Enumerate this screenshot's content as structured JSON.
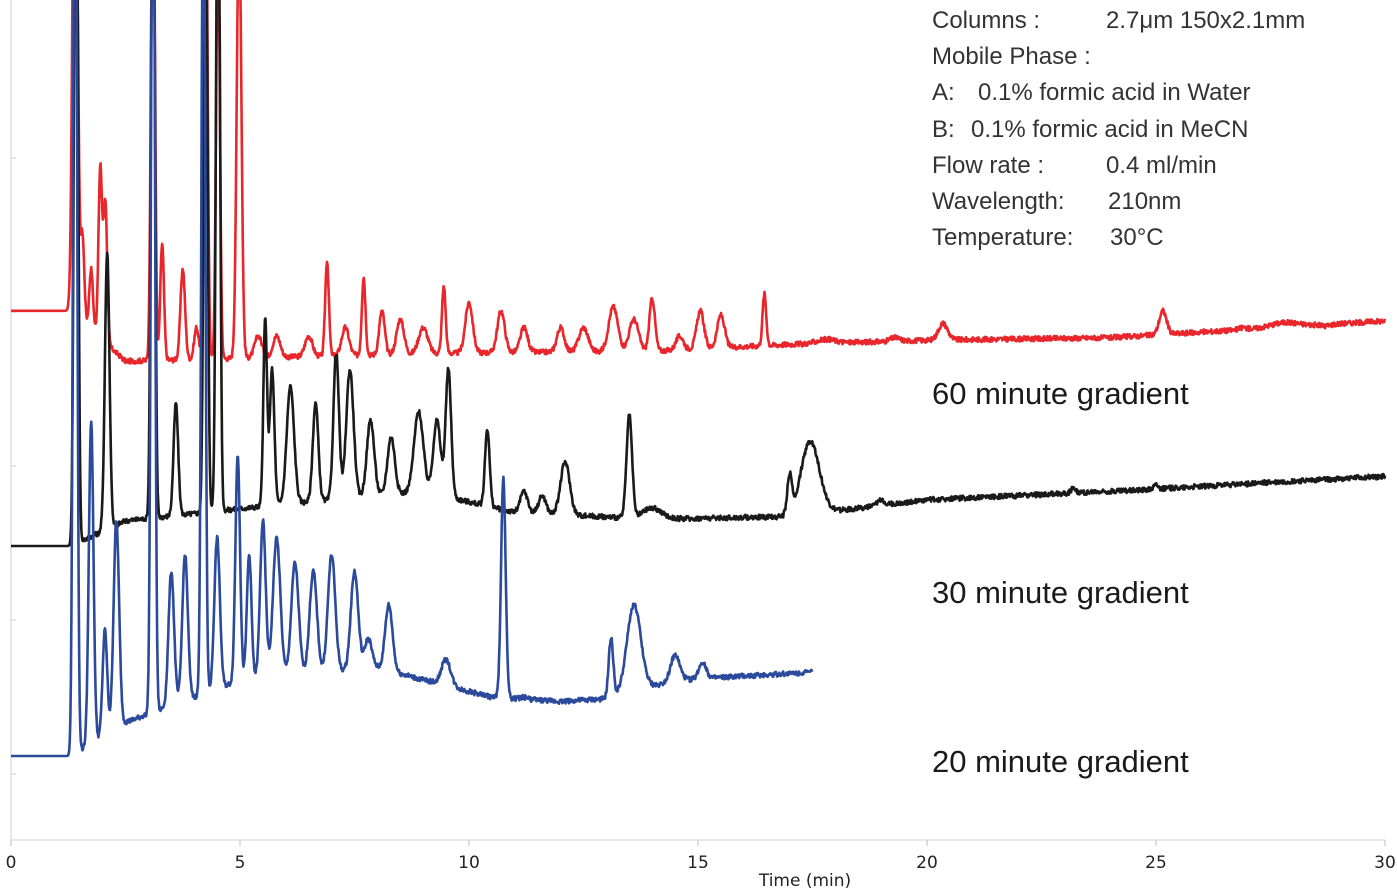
{
  "chart_data": {
    "type": "line",
    "title": "",
    "xlabel": "Time (min)",
    "ylabel": "",
    "xlim": [
      0,
      30
    ],
    "ylim": [
      0,
      100
    ],
    "x_ticks": [
      "0",
      "5",
      "10",
      "15",
      "20",
      "25",
      "30"
    ],
    "grid": false,
    "conditions": [
      {
        "label": "Columns :",
        "value": "2.7μm 150x2.1mm"
      },
      {
        "label": "Mobile Phase :",
        "value": ""
      },
      {
        "label": "A:",
        "value": "0.1% formic acid in Water"
      },
      {
        "label": "B:",
        "value": "0.1% formic acid in MeCN"
      },
      {
        "label": "Flow rate :",
        "value": "0.4 ml/min"
      },
      {
        "label": "Wavelength:",
        "value": "210nm"
      },
      {
        "label": "Temperature:",
        "value": "30°C"
      }
    ],
    "series": [
      {
        "name": "60 minute gradient",
        "color": "#e8262b",
        "baseline": [
          [
            0,
            63
          ],
          [
            1.3,
            63
          ],
          [
            2.5,
            57
          ],
          [
            6,
            57.5
          ],
          [
            10,
            58
          ],
          [
            14,
            58.2
          ],
          [
            17,
            59
          ],
          [
            20,
            59.5
          ],
          [
            24,
            59.8
          ],
          [
            30,
            61.8
          ]
        ],
        "peaks": [
          [
            1.4,
            140,
            0.05
          ],
          [
            1.56,
            72,
            0.04
          ],
          [
            1.75,
            68,
            0.04
          ],
          [
            1.95,
            80,
            0.04
          ],
          [
            2.06,
            76,
            0.04
          ],
          [
            3.1,
            125,
            0.04
          ],
          [
            3.3,
            71,
            0.04
          ],
          [
            3.75,
            68,
            0.05
          ],
          [
            4.05,
            61,
            0.05
          ],
          [
            4.25,
            120,
            0.04
          ],
          [
            4.52,
            108,
            0.04
          ],
          [
            4.98,
            110,
            0.05
          ],
          [
            5.4,
            60,
            0.08
          ],
          [
            5.8,
            60,
            0.08
          ],
          [
            6.5,
            60,
            0.08
          ],
          [
            6.9,
            69,
            0.04
          ],
          [
            7.3,
            61,
            0.08
          ],
          [
            7.7,
            67,
            0.04
          ],
          [
            8.1,
            63,
            0.06
          ],
          [
            8.5,
            62,
            0.08
          ],
          [
            9.0,
            61,
            0.1
          ],
          [
            9.45,
            66,
            0.04
          ],
          [
            10.0,
            64,
            0.08
          ],
          [
            10.7,
            63,
            0.08
          ],
          [
            11.2,
            61,
            0.08
          ],
          [
            12.0,
            61,
            0.08
          ],
          [
            12.5,
            61,
            0.1
          ],
          [
            13.15,
            63.5,
            0.1
          ],
          [
            13.6,
            62,
            0.1
          ],
          [
            14.0,
            64.5,
            0.06
          ],
          [
            14.6,
            60,
            0.08
          ],
          [
            15.05,
            63,
            0.08
          ],
          [
            15.5,
            62.5,
            0.08
          ],
          [
            16.45,
            65,
            0.04
          ],
          [
            17.8,
            59.6,
            0.2
          ],
          [
            19.3,
            59.8,
            0.1
          ],
          [
            20.35,
            61.5,
            0.1
          ],
          [
            25.15,
            63,
            0.08
          ],
          [
            26.9,
            61,
            0.08
          ],
          [
            27.8,
            61.6,
            0.3
          ],
          [
            28.7,
            61.2,
            0.1
          ]
        ]
      },
      {
        "name": "30 minute gradient",
        "color": "#1a1a1a",
        "baseline": [
          [
            0,
            35
          ],
          [
            1.3,
            35
          ],
          [
            2.5,
            38
          ],
          [
            6,
            40
          ],
          [
            9,
            41.5
          ],
          [
            11,
            39
          ],
          [
            14,
            38.2
          ],
          [
            17,
            38.5
          ],
          [
            20,
            40.5
          ],
          [
            24,
            41.5
          ],
          [
            30,
            43.3
          ]
        ],
        "peaks": [
          [
            1.42,
            140,
            0.04
          ],
          [
            2.1,
            70,
            0.05
          ],
          [
            3.1,
            130,
            0.04
          ],
          [
            3.6,
            52,
            0.05
          ],
          [
            4.25,
            118,
            0.04
          ],
          [
            4.52,
            130,
            0.04
          ],
          [
            5.55,
            62,
            0.04
          ],
          [
            5.7,
            56,
            0.05
          ],
          [
            6.1,
            54,
            0.08
          ],
          [
            6.65,
            52,
            0.06
          ],
          [
            7.1,
            58,
            0.06
          ],
          [
            7.4,
            56,
            0.08
          ],
          [
            7.85,
            50,
            0.08
          ],
          [
            8.3,
            48,
            0.08
          ],
          [
            8.9,
            51,
            0.1
          ],
          [
            9.3,
            50,
            0.08
          ],
          [
            9.55,
            56,
            0.06
          ],
          [
            10.4,
            49,
            0.05
          ],
          [
            11.2,
            41.5,
            0.08
          ],
          [
            11.6,
            41,
            0.08
          ],
          [
            12.1,
            45,
            0.1
          ],
          [
            13.5,
            50.5,
            0.06
          ],
          [
            14.0,
            39.5,
            0.2
          ],
          [
            17.0,
            43,
            0.05
          ],
          [
            17.45,
            47.5,
            0.2
          ],
          [
            19.0,
            40.5,
            0.08
          ],
          [
            23.2,
            42,
            0.05
          ],
          [
            25.0,
            42.3,
            0.05
          ]
        ]
      },
      {
        "name": "20 minute gradient",
        "color": "#2b4a9c",
        "baseline": [
          [
            0,
            10
          ],
          [
            1.3,
            10
          ],
          [
            2.5,
            14
          ],
          [
            5,
            19
          ],
          [
            8,
            20.5
          ],
          [
            10.5,
            17
          ],
          [
            12,
            16.5
          ],
          [
            13,
            16.8
          ],
          [
            14.5,
            19
          ],
          [
            17.5,
            20
          ]
        ],
        "peaks": [
          [
            1.4,
            140,
            0.04
          ],
          [
            1.75,
            50,
            0.05
          ],
          [
            2.05,
            25,
            0.05
          ],
          [
            2.3,
            38,
            0.06
          ],
          [
            3.1,
            135,
            0.04
          ],
          [
            3.5,
            32,
            0.06
          ],
          [
            3.8,
            34,
            0.06
          ],
          [
            4.2,
            125,
            0.04
          ],
          [
            4.5,
            36,
            0.06
          ],
          [
            4.95,
            46,
            0.05
          ],
          [
            5.2,
            34,
            0.05
          ],
          [
            5.5,
            38,
            0.06
          ],
          [
            5.8,
            36,
            0.08
          ],
          [
            6.2,
            33,
            0.08
          ],
          [
            6.6,
            32,
            0.08
          ],
          [
            7.0,
            34,
            0.08
          ],
          [
            7.5,
            32,
            0.08
          ],
          [
            7.8,
            24,
            0.08
          ],
          [
            8.25,
            28,
            0.08
          ],
          [
            8.9,
            19.2,
            0.1
          ],
          [
            9.5,
            21.5,
            0.1
          ],
          [
            10.75,
            43,
            0.05
          ],
          [
            11.2,
            17,
            0.08
          ],
          [
            13.1,
            24,
            0.05
          ],
          [
            13.6,
            28,
            0.15
          ],
          [
            14.5,
            22,
            0.1
          ],
          [
            15.1,
            21.2,
            0.08
          ]
        ]
      }
    ]
  }
}
